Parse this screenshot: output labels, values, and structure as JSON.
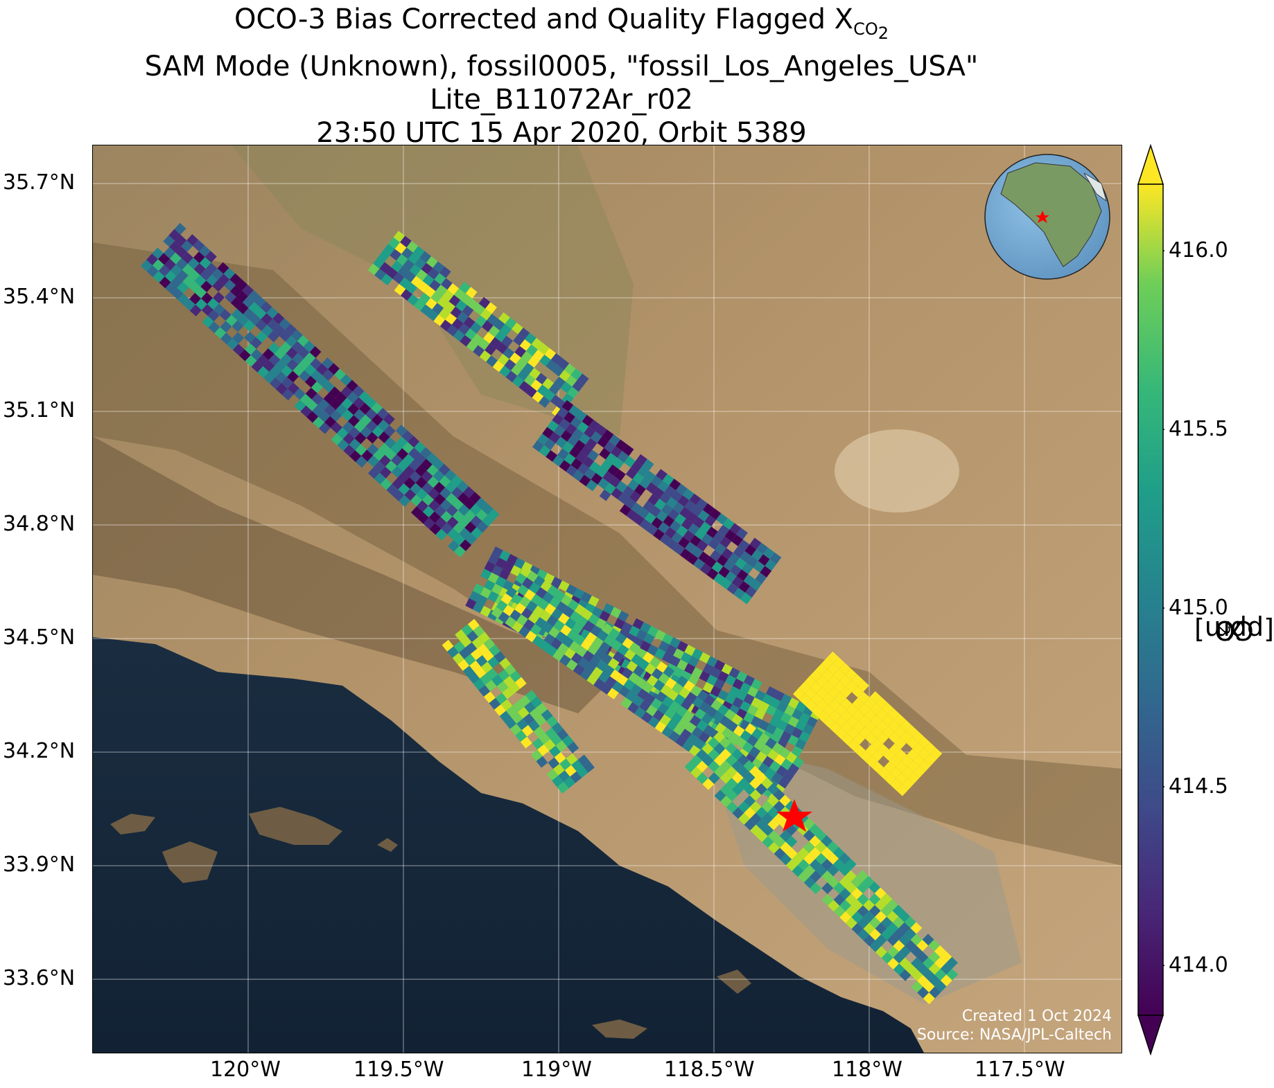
{
  "title": {
    "line1_prefix": "OCO-3 Bias Corrected and Quality Flagged X",
    "line1_sub": "CO",
    "line1_subsub": "2",
    "line2": "SAM Mode (Unknown), fossil0005, \"fossil_Los_Angeles_USA\"",
    "line3": "Lite_B11072Ar_r02",
    "line4": "23:50 UTC 15 Apr 2020, Orbit 5389"
  },
  "map": {
    "lat_ticks": [
      "35.7°N",
      "35.4°N",
      "35.1°N",
      "34.8°N",
      "34.5°N",
      "34.2°N",
      "33.9°N",
      "33.6°N"
    ],
    "lon_ticks": [
      "120°W",
      "119.5°W",
      "119°W",
      "118.5°W",
      "118°W",
      "117.5°W"
    ],
    "target_marker": "red-star",
    "inset_globe": "north-america-globe-with-red-star",
    "credit_line1": "Created 1 Oct 2024",
    "credit_line2": "Source: NASA/JPL-Caltech"
  },
  "colorbar": {
    "colormap": "viridis",
    "ticks": [
      "416.0",
      "415.5",
      "415.0",
      "414.5",
      "414.0"
    ],
    "label_prefix": "X",
    "label_sub": "CO",
    "label_subsub": "2",
    "label_suffix": " [ppm]",
    "extend": "both"
  },
  "colors": {
    "land": "#a98a5f",
    "ocean": "#16283a",
    "star": "#ff0000"
  }
}
